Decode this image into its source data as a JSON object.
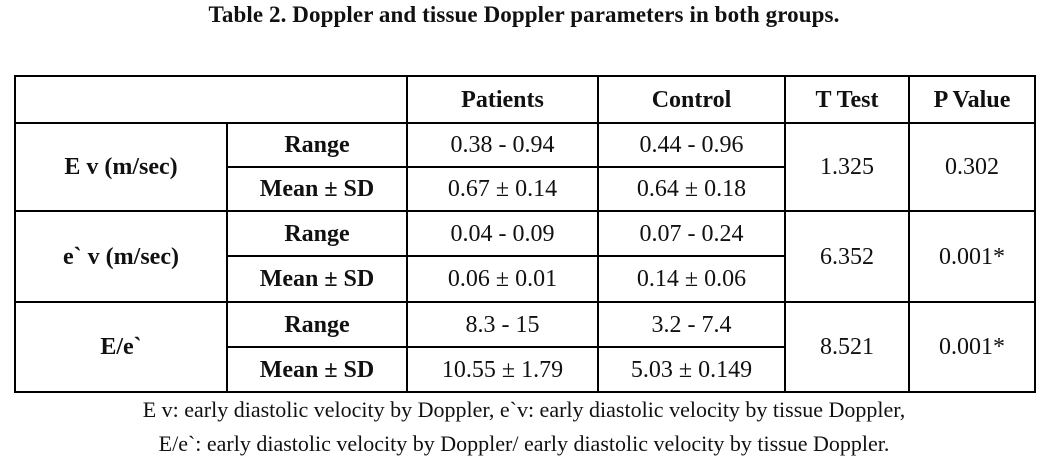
{
  "title": "Table 2. Doppler and tissue Doppler parameters in both groups.",
  "table": {
    "headers": [
      "",
      "",
      "Patients",
      "Control",
      "T Test",
      "P Value"
    ],
    "groups": [
      {
        "label": "E v (m/sec)",
        "t_test": "1.325",
        "p_value": "0.302",
        "rows": [
          {
            "stat": "Range",
            "patients": "0.38 - 0.94",
            "control": "0.44 - 0.96"
          },
          {
            "stat": "Mean ± SD",
            "patients": "0.67 ± 0.14",
            "control": "0.64 ± 0.18"
          }
        ]
      },
      {
        "label": "e` v (m/sec)",
        "t_test": "6.352",
        "p_value": "0.001*",
        "rows": [
          {
            "stat": "Range",
            "patients": "0.04 - 0.09",
            "control": "0.07 - 0.24"
          },
          {
            "stat": "Mean ± SD",
            "patients": "0.06 ± 0.01",
            "control": "0.14 ± 0.06"
          }
        ]
      },
      {
        "label": "E/e`",
        "t_test": "8.521",
        "p_value": "0.001*",
        "rows": [
          {
            "stat": "Range",
            "patients": "8.3 - 15",
            "control": "3.2 - 7.4"
          },
          {
            "stat": "Mean ± SD",
            "patients": "10.55 ± 1.79",
            "control": "5.03 ± 0.149"
          }
        ]
      }
    ]
  },
  "footnote": {
    "line1": "E v: early diastolic velocity by Doppler,  e`v: early diastolic velocity by tissue Doppler,",
    "line2": "E/e`: early diastolic velocity by Doppler/ early diastolic velocity by tissue Doppler."
  }
}
